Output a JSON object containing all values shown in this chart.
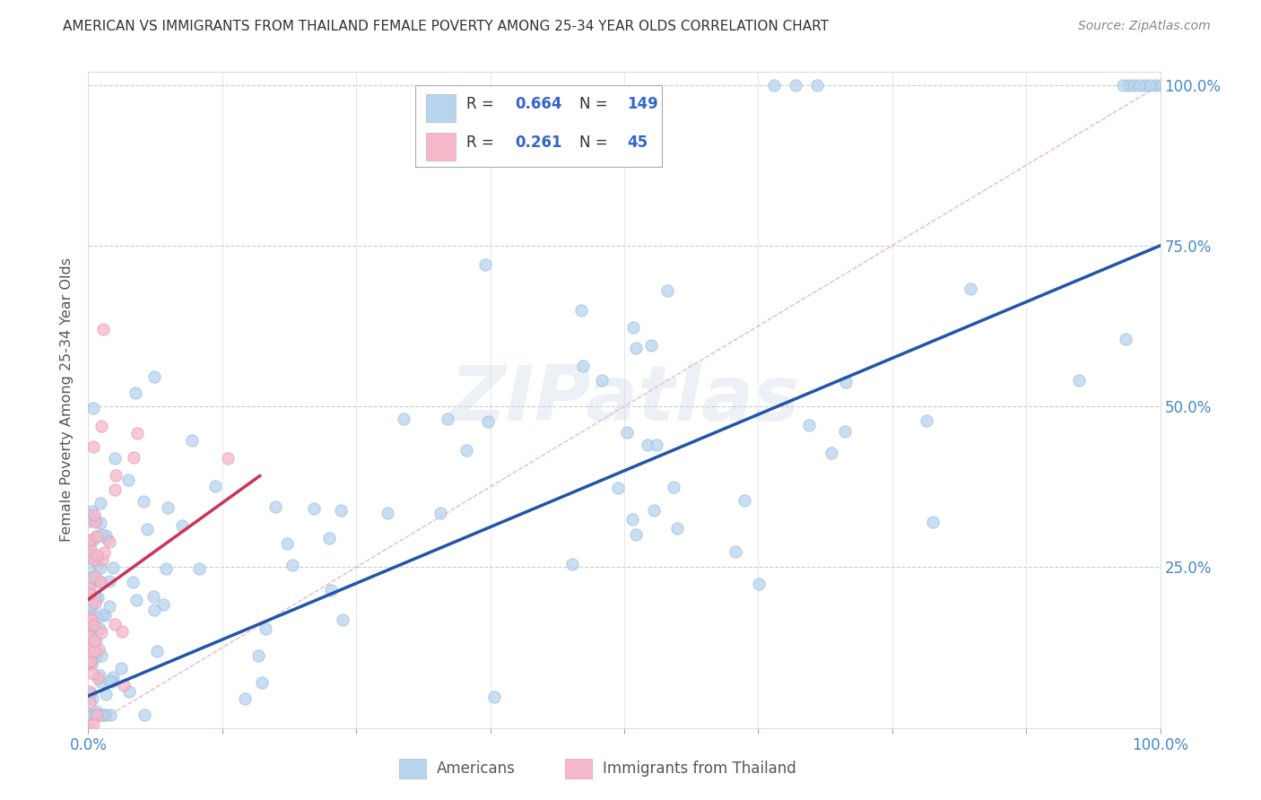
{
  "title": "AMERICAN VS IMMIGRANTS FROM THAILAND FEMALE POVERTY AMONG 25-34 YEAR OLDS CORRELATION CHART",
  "source": "Source: ZipAtlas.com",
  "ylabel": "Female Poverty Among 25-34 Year Olds",
  "watermark": "ZIPatlas",
  "bg_color": "#ffffff",
  "grid_color": "#dddddd",
  "title_color": "#333333",
  "american_dot_color": "#b8d4ed",
  "american_dot_edge": "#a0c0e0",
  "thailand_dot_color": "#f5b8c8",
  "thailand_dot_edge": "#e8a0b8",
  "american_line_color": "#2255aa",
  "thailand_line_color": "#cc3355",
  "diagonal_color": "#e8b0b8",
  "right_label_color": "#4488cc",
  "source_color": "#888888",
  "legend_label_color": "#333333",
  "legend_value_color": "#3366cc",
  "r_am": "0.664",
  "n_am": "149",
  "r_th": "0.261",
  "n_th": "45",
  "am_label": "Americans",
  "th_label": "Immigrants from Thailand",
  "ytick_vals": [
    0.25,
    0.5,
    0.75,
    1.0
  ],
  "ytick_labels": [
    "25.0%",
    "50.0%",
    "75.0%",
    "100.0%"
  ],
  "xtick_labels_left": "0.0%",
  "xtick_labels_right": "100.0%"
}
